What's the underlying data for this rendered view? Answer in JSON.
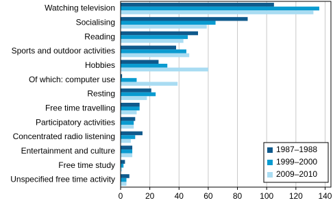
{
  "chart_data": {
    "type": "hbar",
    "categories": [
      "Watching television",
      "Socialising",
      "Reading",
      "Sports and outdoor activities",
      "Hobbies",
      "Of which: computer use",
      "Resting",
      "Free time travelling",
      "Participatory activities",
      "Concentrated radio listening",
      "Entertainment and culture",
      "Free time study",
      "Unspecified free time activity"
    ],
    "series": [
      {
        "name": "1987–1988",
        "color": "#0f5a8c",
        "values": [
          105,
          87,
          53,
          38,
          26,
          1,
          21,
          13,
          10,
          15,
          8,
          3,
          6
        ]
      },
      {
        "name": "1999–2000",
        "color": "#0a9bd0",
        "values": [
          136,
          65,
          46,
          45,
          32,
          11,
          24,
          13,
          9,
          10,
          8,
          2,
          4
        ]
      },
      {
        "name": "2009–2010",
        "color": "#a9dcf2",
        "values": [
          132,
          59,
          43,
          47,
          60,
          39,
          18,
          11,
          9,
          7,
          8,
          1,
          4
        ]
      }
    ],
    "xlim": [
      0,
      144
    ],
    "xticks": [
      0,
      20,
      40,
      60,
      80,
      100,
      120,
      140
    ],
    "grid": true,
    "legend": "lower right"
  }
}
